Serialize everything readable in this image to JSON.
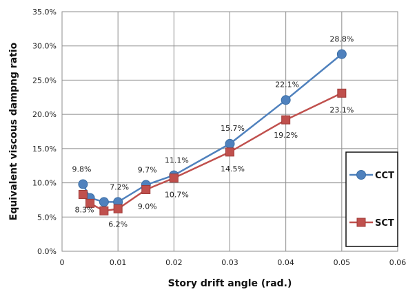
{
  "chart_data": {
    "type": "line",
    "title": "",
    "xlabel": "Story drift angle (rad.)",
    "ylabel": "Equivalent viscous dampng ratio",
    "xlim": [
      0,
      0.06
    ],
    "ylim": [
      0,
      35
    ],
    "x_ticks": [
      "0",
      "0.01",
      "0.02",
      "0.03",
      "0.04",
      "0.05",
      "0.06"
    ],
    "y_ticks": [
      "0.0%",
      "5.0%",
      "10.0%",
      "15.0%",
      "20.0%",
      "25.0%",
      "30.0%",
      "35.0%"
    ],
    "grid": "vertical and horizontal",
    "legend_position": "right",
    "series": [
      {
        "name": "CCT",
        "color": "#4f81bd",
        "marker": "circle",
        "x": [
          0.00375,
          0.005,
          0.0075,
          0.01,
          0.015,
          0.02,
          0.03,
          0.04,
          0.05
        ],
        "y": [
          9.8,
          7.8,
          7.2,
          7.2,
          9.7,
          11.1,
          15.7,
          22.1,
          28.8
        ],
        "labels": [
          "9.8%",
          "",
          "",
          "7.2%",
          "9.7%",
          "11.1%",
          "15.7%",
          "22.1%",
          "28.8%"
        ]
      },
      {
        "name": "SCT",
        "color": "#c0504d",
        "marker": "square",
        "x": [
          0.00375,
          0.005,
          0.0075,
          0.01,
          0.015,
          0.02,
          0.03,
          0.04,
          0.05
        ],
        "y": [
          8.3,
          7.0,
          5.9,
          6.2,
          9.0,
          10.7,
          14.5,
          19.2,
          23.1
        ],
        "labels": [
          "8.3%",
          "",
          "",
          "6.2%",
          "9.0%",
          "10.7%",
          "14.5%",
          "19.2%",
          "23.1%"
        ]
      }
    ]
  }
}
